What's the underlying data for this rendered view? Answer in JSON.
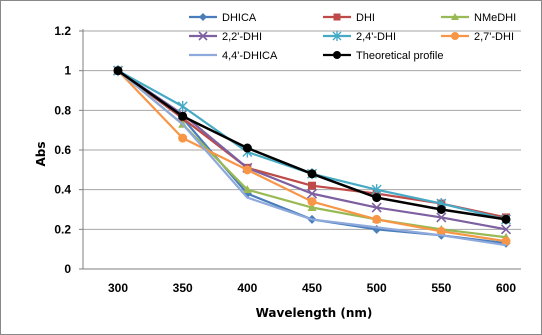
{
  "chart_data": {
    "type": "line",
    "title": "",
    "xlabel": "Wavelength (nm)",
    "ylabel": "Abs",
    "x": [
      300,
      350,
      400,
      450,
      500,
      550,
      600
    ],
    "xlim": [
      300,
      600
    ],
    "ylim": [
      0,
      1.2
    ],
    "yticks": [
      "0",
      "0.2",
      "0.4",
      "0.6",
      "0.8",
      "1",
      "1.2"
    ],
    "xticks": [
      "300",
      "350",
      "400",
      "450",
      "500",
      "550",
      "600"
    ],
    "grid": "horizontal",
    "legend_placement": "top",
    "series": [
      {
        "name": "DHICA",
        "color": "#4a7ebb",
        "marker": "diamond",
        "values": [
          1.0,
          0.76,
          0.38,
          0.25,
          0.2,
          0.17,
          0.13
        ]
      },
      {
        "name": "DHI",
        "color": "#be4b48",
        "marker": "square",
        "values": [
          1.0,
          0.76,
          0.51,
          0.42,
          0.38,
          0.33,
          0.26
        ]
      },
      {
        "name": "NMeDHI",
        "color": "#98b954",
        "marker": "triangle",
        "values": [
          1.0,
          0.73,
          0.4,
          0.31,
          0.25,
          0.2,
          0.16
        ]
      },
      {
        "name": "2,2'-DHI",
        "color": "#7d60a0",
        "marker": "x",
        "values": [
          1.0,
          0.78,
          0.51,
          0.38,
          0.31,
          0.26,
          0.2
        ]
      },
      {
        "name": "2,4'-DHI",
        "color": "#46aac5",
        "marker": "asterisk",
        "values": [
          1.0,
          0.82,
          0.59,
          0.48,
          0.4,
          0.33,
          0.25
        ]
      },
      {
        "name": "2,7'-DHI",
        "color": "#f79646",
        "marker": "circle",
        "values": [
          1.0,
          0.66,
          0.5,
          0.34,
          0.25,
          0.19,
          0.14
        ]
      },
      {
        "name": "4,4'-DHICA",
        "color": "#8ea9db",
        "marker": "line",
        "values": [
          1.0,
          0.73,
          0.36,
          0.25,
          0.21,
          0.17,
          0.12
        ]
      },
      {
        "name": "Theoretical profile",
        "color": "#000000",
        "marker": "circle",
        "values": [
          1.0,
          0.77,
          0.61,
          0.48,
          0.36,
          0.3,
          0.25
        ]
      }
    ]
  }
}
